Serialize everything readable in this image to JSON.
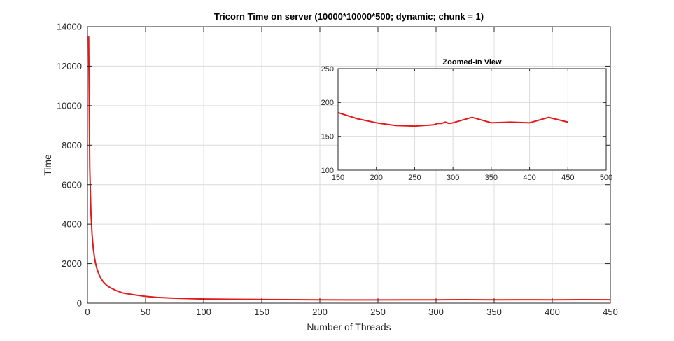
{
  "chart_data": [
    {
      "type": "line",
      "title": "Tricorn Time on server (10000*10000*500; dynamic; chunk = 1)",
      "xlabel": "Number of Threads",
      "ylabel": "Time",
      "xlim": [
        0,
        450
      ],
      "ylim": [
        0,
        14000
      ],
      "xticks": [
        0,
        50,
        100,
        150,
        200,
        250,
        300,
        350,
        400,
        450
      ],
      "yticks": [
        0,
        2000,
        4000,
        6000,
        8000,
        10000,
        12000,
        14000
      ],
      "grid": true,
      "color": "#e31a1c",
      "series": [
        {
          "x": [
            1,
            2,
            3,
            4,
            5,
            6,
            7,
            8,
            10,
            12,
            14,
            16,
            18,
            20,
            25,
            30,
            40,
            50,
            60,
            75,
            100,
            125,
            150,
            175,
            200,
            225,
            250,
            275,
            300,
            325,
            350,
            375,
            400,
            425,
            450
          ],
          "y": [
            13500,
            6800,
            4550,
            3450,
            2780,
            2330,
            2010,
            1770,
            1430,
            1210,
            1050,
            930,
            840,
            770,
            630,
            520,
            420,
            340,
            290,
            250,
            210,
            195,
            185,
            176,
            170,
            166,
            165,
            167,
            170,
            178,
            170,
            171,
            170,
            178,
            171
          ]
        }
      ]
    },
    {
      "type": "line",
      "title": "Zoomed-In View",
      "xlabel": "",
      "ylabel": "",
      "xlim": [
        150,
        500
      ],
      "ylim": [
        100,
        250
      ],
      "xticks": [
        150,
        200,
        250,
        300,
        350,
        400,
        450,
        500
      ],
      "yticks": [
        100,
        150,
        200,
        250
      ],
      "grid": true,
      "color": "#e31a1c",
      "series": [
        {
          "x": [
            150,
            175,
            200,
            225,
            250,
            275,
            280,
            285,
            290,
            295,
            300,
            325,
            350,
            375,
            400,
            425,
            450
          ],
          "y": [
            185,
            176,
            170,
            166,
            165,
            167,
            169,
            169,
            171,
            169,
            170,
            178,
            170,
            171,
            170,
            178,
            171
          ]
        }
      ]
    }
  ]
}
